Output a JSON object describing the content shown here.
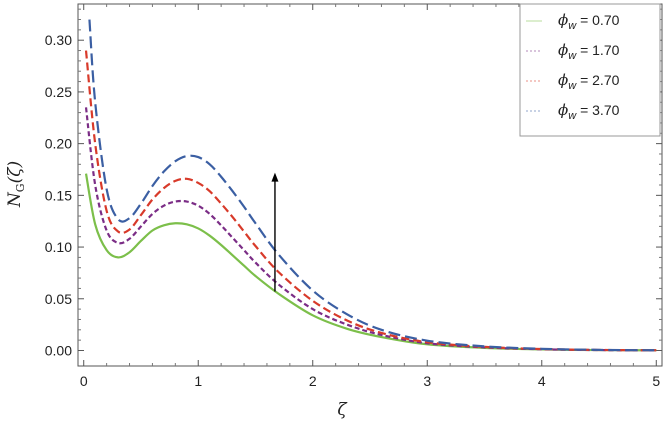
{
  "chart_data": {
    "type": "line",
    "xlabel": "ζ",
    "ylabel": "N_G(ζ)",
    "ylabel_main": "N",
    "ylabel_sub": "G",
    "ylabel_rest": "(ζ)",
    "xlim": [
      -0.05,
      5.05
    ],
    "ylim": [
      -0.015,
      0.335
    ],
    "x_ticks": [
      0,
      1,
      2,
      3,
      4,
      5
    ],
    "x_tick_labels": [
      "0",
      "1",
      "2",
      "3",
      "4",
      "5"
    ],
    "y_ticks": [
      0.0,
      0.05,
      0.1,
      0.15,
      0.2,
      0.25,
      0.3
    ],
    "y_tick_labels": [
      "0.00",
      "0.05",
      "0.10",
      "0.15",
      "0.20",
      "0.25",
      "0.30"
    ],
    "grid": false,
    "legend_position": "top-right",
    "series": [
      {
        "name": "ϕw = 0.70",
        "legend_symbol": "ϕ",
        "legend_sub": "w",
        "legend_value": " = 0.70",
        "color": "#7cbf4a",
        "dash": "",
        "x": [
          0.02,
          0.1,
          0.2,
          0.3,
          0.4,
          0.5,
          0.6,
          0.7,
          0.8,
          0.9,
          1.0,
          1.1,
          1.2,
          1.3,
          1.4,
          1.5,
          1.7,
          2.0,
          2.3,
          2.6,
          3.0,
          3.5,
          4.0,
          4.5,
          5.0
        ],
        "y": [
          0.171,
          0.122,
          0.097,
          0.09,
          0.095,
          0.106,
          0.116,
          0.121,
          0.123,
          0.122,
          0.118,
          0.111,
          0.102,
          0.092,
          0.082,
          0.072,
          0.055,
          0.034,
          0.021,
          0.013,
          0.006,
          0.0025,
          0.001,
          0.0004,
          0.0001
        ]
      },
      {
        "name": "ϕw = 1.70",
        "legend_symbol": "ϕ",
        "legend_sub": "w",
        "legend_value": " = 1.70",
        "color": "#7b2d86",
        "dash": "5,3",
        "x": [
          0.02,
          0.1,
          0.2,
          0.3,
          0.4,
          0.5,
          0.6,
          0.7,
          0.8,
          0.9,
          1.0,
          1.1,
          1.2,
          1.3,
          1.4,
          1.5,
          1.7,
          2.0,
          2.3,
          2.6,
          3.0,
          3.5,
          4.0,
          4.5,
          5.0
        ],
        "y": [
          0.235,
          0.16,
          0.116,
          0.104,
          0.108,
          0.12,
          0.132,
          0.14,
          0.144,
          0.144,
          0.14,
          0.132,
          0.121,
          0.109,
          0.097,
          0.085,
          0.064,
          0.04,
          0.025,
          0.015,
          0.007,
          0.003,
          0.0012,
          0.0004,
          0.0001
        ]
      },
      {
        "name": "ϕw = 2.70",
        "legend_symbol": "ϕ",
        "legend_sub": "w",
        "legend_value": " = 2.70",
        "color": "#d83a2a",
        "dash": "8,4",
        "x": [
          0.02,
          0.1,
          0.2,
          0.3,
          0.4,
          0.5,
          0.6,
          0.7,
          0.8,
          0.9,
          1.0,
          1.1,
          1.2,
          1.3,
          1.4,
          1.5,
          1.7,
          2.0,
          2.3,
          2.6,
          3.0,
          3.5,
          4.0,
          4.5,
          5.0
        ],
        "y": [
          0.29,
          0.2,
          0.135,
          0.115,
          0.117,
          0.131,
          0.146,
          0.157,
          0.164,
          0.166,
          0.162,
          0.154,
          0.142,
          0.129,
          0.115,
          0.101,
          0.076,
          0.048,
          0.029,
          0.017,
          0.008,
          0.0035,
          0.0014,
          0.0005,
          0.0002
        ]
      },
      {
        "name": "ϕw = 3.70",
        "legend_symbol": "ϕ",
        "legend_sub": "w",
        "legend_value": " = 3.70",
        "color": "#3b5fa3",
        "dash": "12,5",
        "x": [
          0.05,
          0.1,
          0.2,
          0.3,
          0.4,
          0.5,
          0.6,
          0.7,
          0.8,
          0.9,
          1.0,
          1.1,
          1.2,
          1.3,
          1.4,
          1.5,
          1.7,
          2.0,
          2.3,
          2.6,
          3.0,
          3.5,
          4.0,
          4.5,
          5.0
        ],
        "y": [
          0.32,
          0.24,
          0.156,
          0.127,
          0.128,
          0.142,
          0.159,
          0.173,
          0.183,
          0.188,
          0.187,
          0.18,
          0.168,
          0.154,
          0.139,
          0.123,
          0.093,
          0.058,
          0.035,
          0.02,
          0.0095,
          0.004,
          0.0016,
          0.0006,
          0.0002
        ]
      }
    ],
    "annotations": [
      {
        "type": "arrow",
        "x": 1.67,
        "y_from": 0.057,
        "y_to": 0.172
      }
    ]
  }
}
